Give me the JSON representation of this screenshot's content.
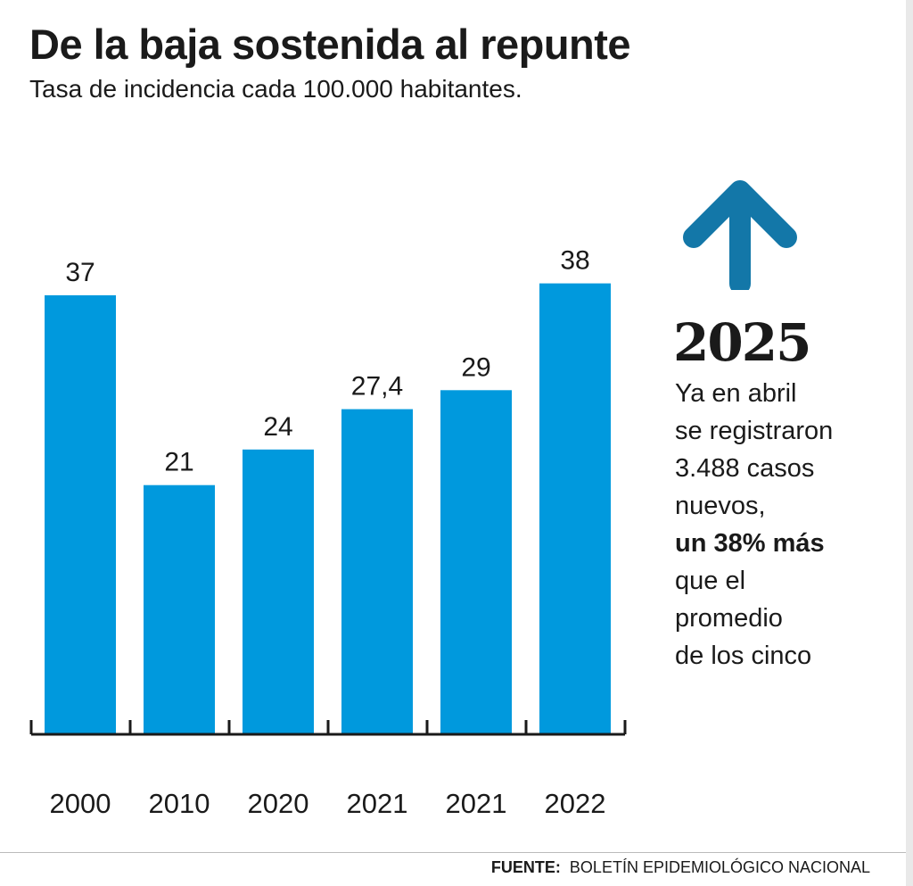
{
  "header": {
    "title": "De la baja sostenida al repunte",
    "subtitle": "Tasa de incidencia cada 100.000 habitantes."
  },
  "chart_data": {
    "type": "bar",
    "title": "De la baja sostenida al repunte",
    "subtitle": "Tasa de incidencia cada 100.000 habitantes.",
    "categories": [
      "2000",
      "2010",
      "2020",
      "2021",
      "2021",
      "2022"
    ],
    "values": [
      37,
      21,
      24,
      27.4,
      29,
      38
    ],
    "value_labels": [
      "37",
      "21",
      "24",
      "27,4",
      "29",
      "38"
    ],
    "xlabel": "",
    "ylabel": "",
    "ylim": [
      0,
      40
    ],
    "grid": false,
    "bar_color": "#0099dd"
  },
  "callout": {
    "year": "2025",
    "lines": [
      {
        "text": "Ya en abril",
        "bold": false
      },
      {
        "text": "se registraron",
        "bold": false
      },
      {
        "text": "3.488 casos",
        "bold": false
      },
      {
        "text": "nuevos,",
        "bold": false
      },
      {
        "text": "un 38% más",
        "bold": true
      },
      {
        "text": "que el",
        "bold": false
      },
      {
        "text": "promedio",
        "bold": false
      },
      {
        "text": "de los cinco",
        "bold": false
      }
    ],
    "arrow_icon": "arrow-up-icon",
    "arrow_color": "#1377a8"
  },
  "source": {
    "label": "FUENTE:",
    "text": "BOLETÍN EPIDEMIOLÓGICO NACIONAL"
  }
}
